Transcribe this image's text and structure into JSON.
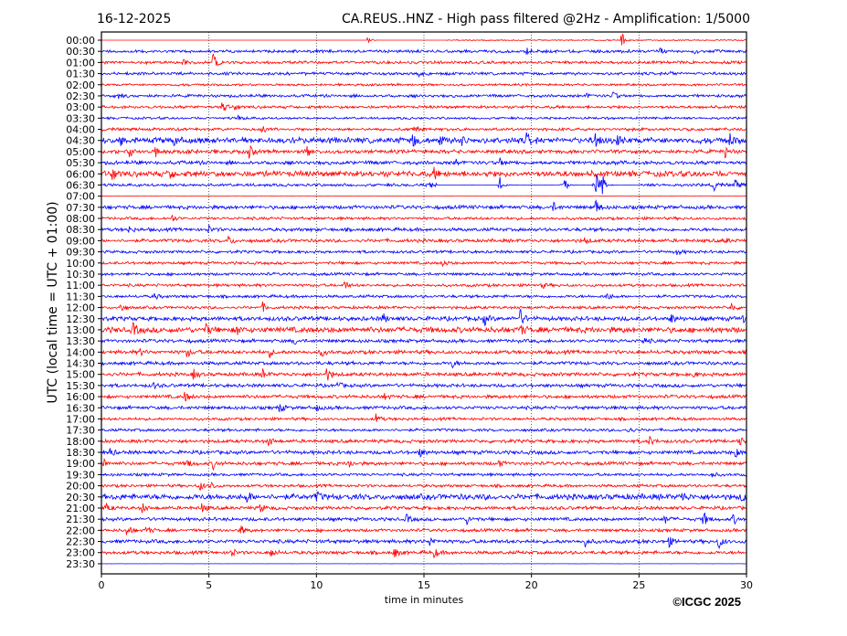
{
  "chart_data": {
    "type": "line",
    "date": "16-12-2025",
    "title": "CA.REUS..HNZ - High pass filtered @2Hz - Amplification: 1/5000",
    "xlabel": "time in minutes",
    "ylabel": "UTC (local time = UTC + 01:00)",
    "xlim": [
      0,
      30
    ],
    "xticks": [
      "0",
      "5",
      "10",
      "15",
      "20",
      "25",
      "30"
    ],
    "grid": "vertical dotted lines every 5 minutes",
    "copyright": "©ICGC 2025",
    "colors": {
      "even": "#ff0000",
      "odd": "#0000ff"
    },
    "rows": [
      {
        "label": "00:00",
        "noise": 0.4,
        "events": [
          [
            12.4,
            2
          ],
          [
            24.2,
            5
          ]
        ],
        "gaps": [
          [
            0,
            16
          ]
        ]
      },
      {
        "label": "00:30",
        "noise": 1,
        "events": [
          [
            19.8,
            2
          ],
          [
            24.5,
            2
          ],
          [
            26,
            2
          ],
          [
            27.5,
            2
          ]
        ]
      },
      {
        "label": "01:00",
        "noise": 1,
        "events": [
          [
            3.8,
            2
          ],
          [
            5.2,
            5
          ]
        ]
      },
      {
        "label": "01:30",
        "noise": 1,
        "events": [
          [
            14.8,
            1.5
          ],
          [
            26.5,
            1.5
          ]
        ]
      },
      {
        "label": "02:00",
        "noise": 0.8,
        "events": [
          [
            11,
            1
          ]
        ]
      },
      {
        "label": "02:30",
        "noise": 1,
        "events": [
          [
            0.8,
            2
          ],
          [
            22.5,
            2
          ],
          [
            23.8,
            3
          ]
        ]
      },
      {
        "label": "03:00",
        "noise": 1,
        "events": [
          [
            5.6,
            4
          ],
          [
            6.2,
            2
          ]
        ]
      },
      {
        "label": "03:30",
        "noise": 0.8,
        "events": [
          [
            6.4,
            2
          ]
        ]
      },
      {
        "label": "04:00",
        "noise": 1,
        "events": [
          [
            7.5,
            2
          ],
          [
            14.5,
            2
          ]
        ]
      },
      {
        "label": "04:30",
        "noise": 2,
        "events": [
          [
            0.9,
            3
          ],
          [
            3.4,
            3
          ],
          [
            14.5,
            4
          ],
          [
            15.7,
            4
          ],
          [
            16.8,
            3
          ],
          [
            19.8,
            4
          ],
          [
            23,
            4
          ],
          [
            24,
            3
          ],
          [
            29.2,
            4
          ]
        ]
      },
      {
        "label": "05:00",
        "noise": 1.3,
        "events": [
          [
            1.3,
            4
          ],
          [
            2.5,
            4
          ],
          [
            4,
            3
          ],
          [
            5.2,
            3
          ],
          [
            6.9,
            4
          ],
          [
            9.6,
            3
          ],
          [
            29,
            4
          ]
        ]
      },
      {
        "label": "05:30",
        "noise": 1.3,
        "events": [
          [
            16.5,
            3
          ],
          [
            18.5,
            3
          ]
        ]
      },
      {
        "label": "06:00",
        "noise": 2,
        "events": [
          [
            0.5,
            5
          ],
          [
            3.2,
            3
          ],
          [
            15.5,
            3
          ]
        ]
      },
      {
        "label": "06:30",
        "noise": 1,
        "events": [
          [
            15.3,
            2
          ],
          [
            18.5,
            7
          ],
          [
            21.5,
            5
          ],
          [
            23,
            8
          ],
          [
            23.3,
            6
          ],
          [
            28.5,
            3
          ],
          [
            29.5,
            3
          ]
        ],
        "gaps": [
          [
            15.6,
            18.4
          ],
          [
            18.7,
            21.3
          ],
          [
            21.7,
            22.8
          ],
          [
            23.5,
            25
          ]
        ]
      },
      {
        "label": "07:00",
        "noise": 0.2,
        "events": [],
        "gaps": [
          [
            0,
            30
          ]
        ]
      },
      {
        "label": "07:30",
        "noise": 1.3,
        "events": [
          [
            21,
            3
          ],
          [
            23,
            5
          ]
        ]
      },
      {
        "label": "08:00",
        "noise": 1,
        "events": [
          [
            3.3,
            2
          ]
        ]
      },
      {
        "label": "08:30",
        "noise": 1.2,
        "events": [
          [
            1.3,
            2
          ],
          [
            5,
            2
          ]
        ]
      },
      {
        "label": "09:00",
        "noise": 1.2,
        "events": [
          [
            5.9,
            3
          ],
          [
            22.5,
            2
          ],
          [
            29,
            2
          ]
        ]
      },
      {
        "label": "09:30",
        "noise": 1,
        "events": [
          [
            26.8,
            2
          ]
        ]
      },
      {
        "label": "10:00",
        "noise": 1,
        "events": [
          [
            15.9,
            2
          ]
        ]
      },
      {
        "label": "10:30",
        "noise": 1,
        "events": []
      },
      {
        "label": "11:00",
        "noise": 1,
        "events": [
          [
            11.3,
            3
          ],
          [
            20.5,
            2
          ]
        ]
      },
      {
        "label": "11:30",
        "noise": 1,
        "events": [
          [
            2.5,
            2
          ],
          [
            23.5,
            3
          ]
        ]
      },
      {
        "label": "12:00",
        "noise": 1,
        "events": [
          [
            0.9,
            3
          ],
          [
            7.5,
            3
          ],
          [
            29.3,
            3
          ]
        ]
      },
      {
        "label": "12:30",
        "noise": 1.5,
        "events": [
          [
            13.1,
            3
          ],
          [
            17.8,
            4
          ],
          [
            19.5,
            5
          ],
          [
            26.5,
            3
          ],
          [
            29.8,
            3
          ]
        ]
      },
      {
        "label": "13:00",
        "noise": 2,
        "events": [
          [
            1.5,
            4
          ],
          [
            4.9,
            3
          ],
          [
            6.3,
            3
          ],
          [
            19.5,
            3
          ]
        ]
      },
      {
        "label": "13:30",
        "noise": 1.2,
        "events": [
          [
            9,
            2
          ],
          [
            25.2,
            3
          ]
        ]
      },
      {
        "label": "14:00",
        "noise": 1.3,
        "events": [
          [
            1.8,
            2
          ],
          [
            4,
            3
          ],
          [
            7.8,
            3
          ],
          [
            10.2,
            3
          ]
        ]
      },
      {
        "label": "14:30",
        "noise": 1.2,
        "events": [
          [
            16.3,
            3
          ]
        ]
      },
      {
        "label": "15:00",
        "noise": 1.3,
        "events": [
          [
            4.3,
            3
          ],
          [
            7.5,
            3
          ],
          [
            10.5,
            4
          ],
          [
            27.5,
            2
          ]
        ]
      },
      {
        "label": "15:30",
        "noise": 1.2,
        "events": [
          [
            2.4,
            2
          ],
          [
            11,
            2
          ]
        ]
      },
      {
        "label": "16:00",
        "noise": 1.2,
        "events": [
          [
            3.9,
            3
          ],
          [
            13.2,
            2
          ]
        ]
      },
      {
        "label": "16:30",
        "noise": 1.2,
        "events": [
          [
            8.3,
            3
          ],
          [
            10,
            2
          ]
        ]
      },
      {
        "label": "17:00",
        "noise": 1,
        "events": [
          [
            12.8,
            3
          ]
        ]
      },
      {
        "label": "17:30",
        "noise": 1,
        "events": [
          [
            24.5,
            2
          ]
        ]
      },
      {
        "label": "18:00",
        "noise": 1.2,
        "events": [
          [
            7.8,
            3
          ],
          [
            25.5,
            3
          ],
          [
            29.7,
            3
          ]
        ]
      },
      {
        "label": "18:30",
        "noise": 1.3,
        "events": [
          [
            0.4,
            3
          ],
          [
            14.8,
            3
          ],
          [
            29.5,
            3
          ]
        ]
      },
      {
        "label": "19:00",
        "noise": 1.2,
        "events": [
          [
            0.1,
            3
          ],
          [
            4,
            3
          ],
          [
            5.2,
            3
          ],
          [
            11.5,
            3
          ],
          [
            18.5,
            2
          ]
        ]
      },
      {
        "label": "19:30",
        "noise": 1,
        "events": [
          [
            28.4,
            2
          ]
        ]
      },
      {
        "label": "20:00",
        "noise": 1,
        "events": [
          [
            4.6,
            3
          ],
          [
            5.1,
            3
          ]
        ]
      },
      {
        "label": "20:30",
        "noise": 2,
        "events": [
          [
            6.8,
            3
          ],
          [
            10,
            3
          ],
          [
            27,
            3
          ],
          [
            29.8,
            3
          ]
        ]
      },
      {
        "label": "21:00",
        "noise": 1.2,
        "events": [
          [
            0.2,
            3
          ],
          [
            1.9,
            3
          ],
          [
            4.7,
            3
          ],
          [
            7.4,
            3
          ]
        ]
      },
      {
        "label": "21:30",
        "noise": 1.2,
        "events": [
          [
            14.2,
            3
          ],
          [
            17,
            3
          ],
          [
            26.2,
            3
          ],
          [
            28,
            5
          ],
          [
            29.4,
            3
          ]
        ]
      },
      {
        "label": "22:00",
        "noise": 1.1,
        "events": [
          [
            1.2,
            4
          ],
          [
            2.1,
            3
          ],
          [
            6.5,
            3
          ]
        ]
      },
      {
        "label": "22:30",
        "noise": 1.3,
        "events": [
          [
            15.3,
            3
          ],
          [
            22.5,
            3
          ],
          [
            26.4,
            3
          ],
          [
            28.7,
            5
          ]
        ]
      },
      {
        "label": "23:00",
        "noise": 1.2,
        "events": [
          [
            6,
            4
          ],
          [
            7.9,
            3
          ],
          [
            13.6,
            4
          ],
          [
            15.5,
            3
          ]
        ]
      },
      {
        "label": "23:30",
        "noise": 0.4,
        "events": [],
        "gaps": [
          [
            0,
            30
          ]
        ]
      }
    ]
  }
}
